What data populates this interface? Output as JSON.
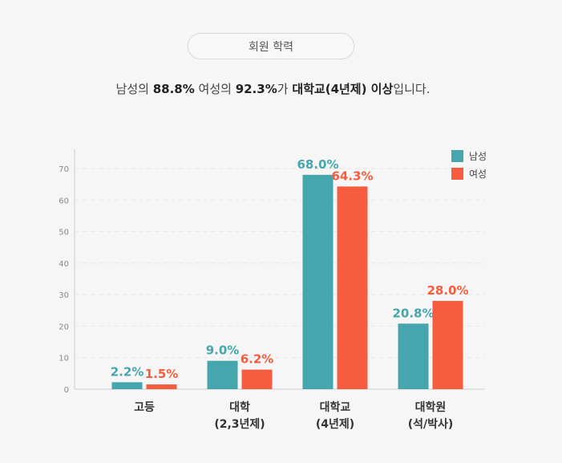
{
  "title_pill": "회원 학력",
  "summary": {
    "p1": "남성의 ",
    "male_pct": "88.8%",
    "p2": " 여성의 ",
    "female_pct": "92.3%",
    "p3": "가 ",
    "highlight": "대학교(4년제) 이상",
    "p4": "입니다."
  },
  "colors": {
    "male": "#45a6ad",
    "female": "#f55d3e",
    "axis": "#cccccc",
    "grid": "#e6e6e6",
    "tick": "#888888"
  },
  "chart_data": {
    "type": "bar",
    "title": "회원 학력",
    "categories": [
      "고등",
      "대학 (2,3년제)",
      "대학교 (4년제)",
      "대학원 (석/박사)"
    ],
    "category_lines": [
      [
        "고등"
      ],
      [
        "대학",
        "(2,3년제)"
      ],
      [
        "대학교",
        "(4년제)"
      ],
      [
        "대학원",
        "(석/박사)"
      ]
    ],
    "series": [
      {
        "name": "남성",
        "values": [
          2.2,
          9.0,
          68.0,
          20.8
        ]
      },
      {
        "name": "여성",
        "values": [
          1.5,
          6.2,
          64.3,
          28.0
        ]
      }
    ],
    "ylim": [
      0,
      70
    ],
    "yticks": [
      0,
      10,
      20,
      30,
      40,
      50,
      60,
      70
    ],
    "value_suffix": "%",
    "legend_position": "top-right",
    "xlabel": "",
    "ylabel": ""
  }
}
